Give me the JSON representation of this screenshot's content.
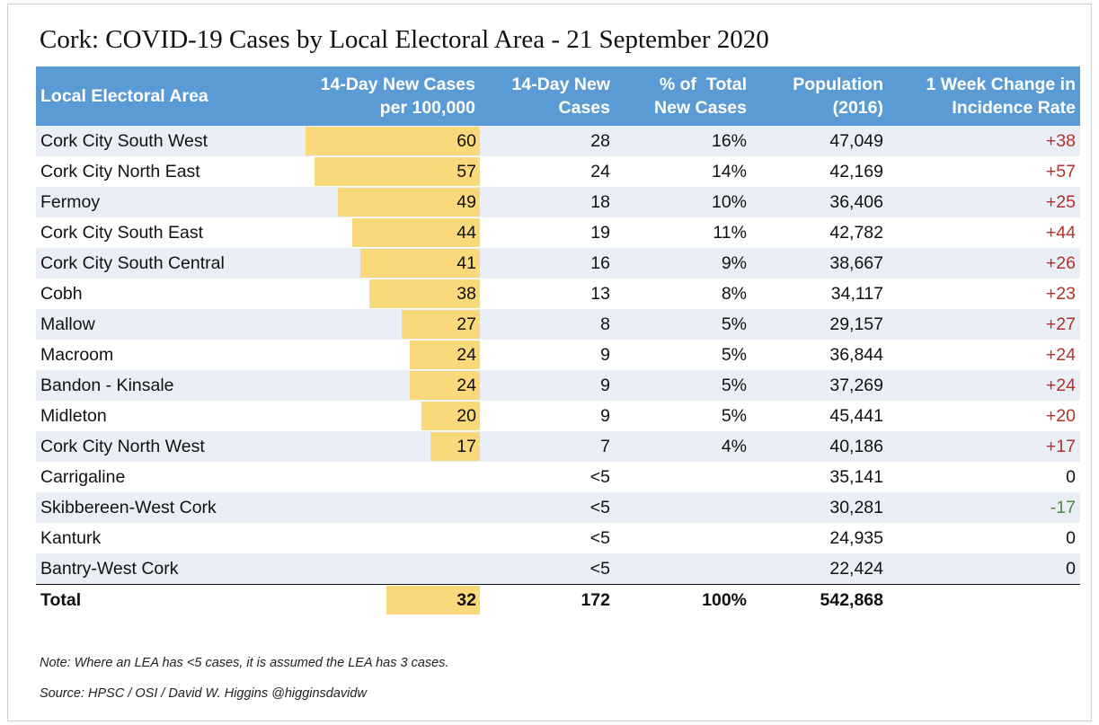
{
  "title": "Cork: COVID-19 Cases by Local Electoral Area - 21 September 2020",
  "headers": {
    "area": "Local Electoral Area",
    "rate_l1": "14-Day New Cases",
    "rate_l2": "per 100,000",
    "cases_l1": "14-Day New",
    "cases_l2": "Cases",
    "pct_l1": "% of  Total",
    "pct_l2": "New Cases",
    "pop_l1": "Population",
    "pop_l2": "(2016)",
    "chg_l1": "1 Week Change in",
    "chg_l2": "Incidence Rate"
  },
  "chart_data": {
    "type": "table",
    "bar_max": 60,
    "columns": [
      "Local Electoral Area",
      "14-Day New Cases per 100,000",
      "14-Day New Cases",
      "% of  Total New Cases",
      "Population (2016)",
      "1 Week Change in Incidence Rate"
    ],
    "rows": [
      {
        "area": "Cork City South West",
        "rate": 60,
        "cases": "28",
        "pct": "16%",
        "pop": "47,049",
        "change": "+38"
      },
      {
        "area": "Cork City North East",
        "rate": 57,
        "cases": "24",
        "pct": "14%",
        "pop": "42,169",
        "change": "+57"
      },
      {
        "area": "Fermoy",
        "rate": 49,
        "cases": "18",
        "pct": "10%",
        "pop": "36,406",
        "change": "+25"
      },
      {
        "area": "Cork City South East",
        "rate": 44,
        "cases": "19",
        "pct": "11%",
        "pop": "42,782",
        "change": "+44"
      },
      {
        "area": "Cork City South Central",
        "rate": 41,
        "cases": "16",
        "pct": "9%",
        "pop": "38,667",
        "change": "+26"
      },
      {
        "area": "Cobh",
        "rate": 38,
        "cases": "13",
        "pct": "8%",
        "pop": "34,117",
        "change": "+23"
      },
      {
        "area": "Mallow",
        "rate": 27,
        "cases": "8",
        "pct": "5%",
        "pop": "29,157",
        "change": "+27"
      },
      {
        "area": "Macroom",
        "rate": 24,
        "cases": "9",
        "pct": "5%",
        "pop": "36,844",
        "change": "+24"
      },
      {
        "area": "Bandon - Kinsale",
        "rate": 24,
        "cases": "9",
        "pct": "5%",
        "pop": "37,269",
        "change": "+24"
      },
      {
        "area": "Midleton",
        "rate": 20,
        "cases": "9",
        "pct": "5%",
        "pop": "45,441",
        "change": "+20"
      },
      {
        "area": "Cork City North West",
        "rate": 17,
        "cases": "7",
        "pct": "4%",
        "pop": "40,186",
        "change": "+17"
      },
      {
        "area": "Carrigaline",
        "rate": null,
        "cases": "<5",
        "pct": "",
        "pop": "35,141",
        "change": "0"
      },
      {
        "area": "Skibbereen-West Cork",
        "rate": null,
        "cases": "<5",
        "pct": "",
        "pop": "30,281",
        "change": "-17"
      },
      {
        "area": "Kanturk",
        "rate": null,
        "cases": "<5",
        "pct": "",
        "pop": "24,935",
        "change": "0"
      },
      {
        "area": "Bantry-West Cork",
        "rate": null,
        "cases": "<5",
        "pct": "",
        "pop": "22,424",
        "change": "0"
      }
    ],
    "total": {
      "label": "Total",
      "rate": 32,
      "cases": "172",
      "pct": "100%",
      "pop": "542,868",
      "change": ""
    }
  },
  "colors": {
    "header_bg": "#5b9bd5",
    "bar": "#fad97a",
    "row_alt": "#eaeff7",
    "positive_change": "#b5312a",
    "negative_change": "#4e8a3a"
  },
  "note": "Note: Where an LEA has <5 cases, it is assumed the LEA has 3 cases.",
  "source": "Source: HPSC / OSI / David W. Higgins @higginsdavidw"
}
